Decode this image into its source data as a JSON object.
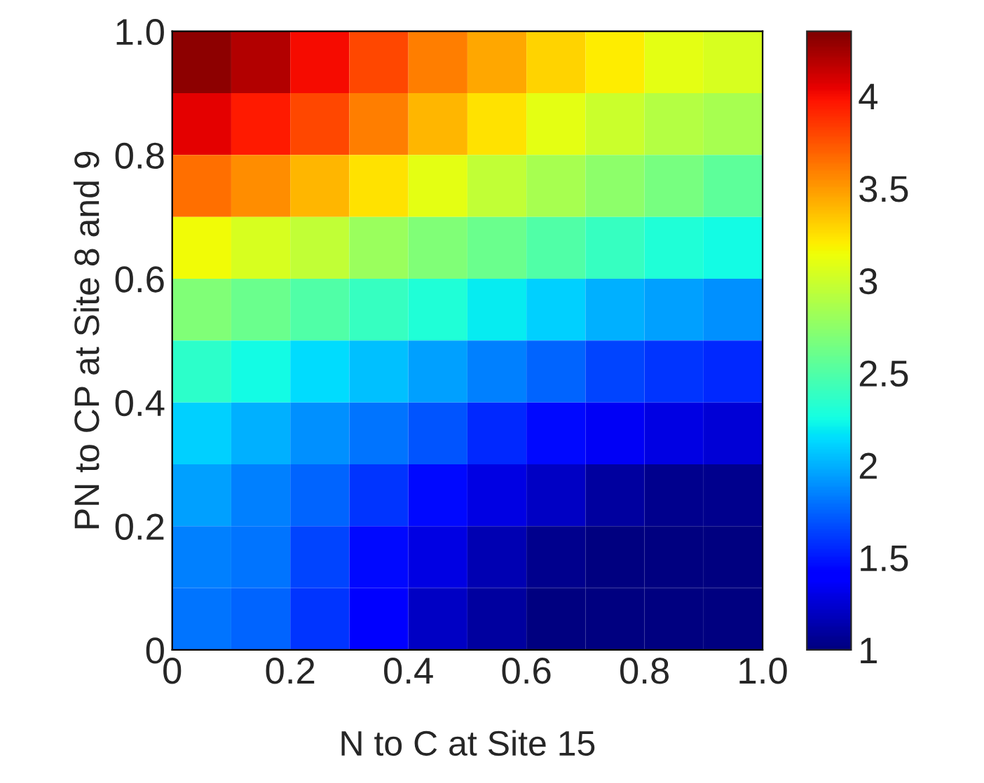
{
  "chart_data": {
    "type": "heatmap",
    "xlabel": "N to C at Site 15",
    "ylabel": "PN to CP at Site 8 and 9",
    "x": [
      0.05,
      0.15,
      0.25,
      0.35,
      0.45,
      0.55,
      0.65,
      0.75,
      0.85,
      0.95
    ],
    "y": [
      0.95,
      0.85,
      0.75,
      0.65,
      0.55,
      0.45,
      0.35,
      0.25,
      0.15,
      0.05
    ],
    "xlim": [
      0,
      1
    ],
    "ylim": [
      0,
      1
    ],
    "xticks": [
      0,
      0.2,
      0.4,
      0.6,
      0.8,
      {
        "value": 1,
        "label": "1.0"
      }
    ],
    "yticks": [
      0,
      0.2,
      0.4,
      0.6,
      0.8,
      {
        "value": 1,
        "label": "1.0"
      }
    ],
    "clim": [
      1,
      4.35
    ],
    "cticks": [
      1,
      1.5,
      2,
      2.5,
      3,
      3.5,
      4
    ],
    "cells": [
      [
        4.3,
        4.2,
        4.0,
        3.8,
        3.6,
        3.45,
        3.3,
        3.2,
        3.1,
        3.05
      ],
      [
        4.05,
        3.95,
        3.8,
        3.6,
        3.4,
        3.25,
        3.1,
        3.0,
        2.9,
        2.85
      ],
      [
        3.65,
        3.55,
        3.4,
        3.25,
        3.1,
        2.95,
        2.85,
        2.75,
        2.65,
        2.55
      ],
      [
        3.15,
        3.05,
        2.95,
        2.8,
        2.7,
        2.6,
        2.5,
        2.4,
        2.3,
        2.25
      ],
      [
        2.7,
        2.6,
        2.5,
        2.4,
        2.3,
        2.2,
        2.1,
        2.0,
        1.95,
        1.9
      ],
      [
        2.35,
        2.25,
        2.15,
        2.05,
        1.95,
        1.85,
        1.75,
        1.65,
        1.6,
        1.55
      ],
      [
        2.1,
        2.0,
        1.9,
        1.8,
        1.7,
        1.55,
        1.45,
        1.35,
        1.3,
        1.25
      ],
      [
        1.95,
        1.85,
        1.75,
        1.6,
        1.45,
        1.3,
        1.2,
        1.1,
        1.05,
        1.05
      ],
      [
        1.85,
        1.8,
        1.65,
        1.45,
        1.3,
        1.15,
        1.05,
        1.0,
        1.0,
        1.0
      ],
      [
        1.8,
        1.75,
        1.6,
        1.4,
        1.2,
        1.1,
        1.0,
        1.0,
        1.0,
        1.0
      ]
    ]
  }
}
